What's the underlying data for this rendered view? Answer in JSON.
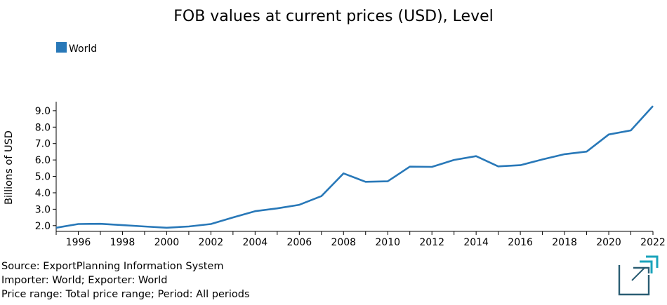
{
  "chart_data": {
    "type": "line",
    "title": "FOB values at current prices (USD), Level",
    "xlabel": "",
    "ylabel": "Billions of USD",
    "xlim": [
      1995,
      2022
    ],
    "ylim": [
      1.65,
      9.55
    ],
    "yticks": [
      2.0,
      3.0,
      4.0,
      5.0,
      6.0,
      7.0,
      8.0,
      9.0
    ],
    "ytick_labels": [
      "2.0",
      "3.0",
      "4.0",
      "5.0",
      "6.0",
      "7.0",
      "8.0",
      "9.0"
    ],
    "xticks": [
      1996,
      1998,
      2000,
      2002,
      2004,
      2006,
      2008,
      2010,
      2012,
      2014,
      2016,
      2018,
      2020,
      2022
    ],
    "xtick_labels": [
      "1996",
      "1998",
      "2000",
      "2002",
      "2004",
      "2006",
      "2008",
      "2010",
      "2012",
      "2014",
      "2016",
      "2018",
      "2020",
      "2022"
    ],
    "legend_position": "top-left",
    "grid": false,
    "x": [
      1995,
      1996,
      1997,
      1998,
      1999,
      2000,
      2001,
      2002,
      2003,
      2004,
      2005,
      2006,
      2007,
      2008,
      2009,
      2010,
      2011,
      2012,
      2013,
      2014,
      2015,
      2016,
      2017,
      2018,
      2019,
      2020,
      2021,
      2022
    ],
    "series": [
      {
        "name": "World",
        "color": "#2878b8",
        "values": [
          1.87,
          2.1,
          2.11,
          2.03,
          1.95,
          1.87,
          1.95,
          2.1,
          2.5,
          2.88,
          3.05,
          3.27,
          3.8,
          5.18,
          4.67,
          4.7,
          5.59,
          5.58,
          6.0,
          6.23,
          5.61,
          5.68,
          6.03,
          6.35,
          6.51,
          7.55,
          7.8,
          9.28
        ]
      }
    ]
  },
  "footer": {
    "source": "Source: ExportPlanning Information System",
    "importer_exporter": "Importer: World; Exporter: World",
    "price_period": "Price range: Total price range; Period: All periods"
  },
  "logo": {
    "name": "exportplanning-logo-icon",
    "colors": [
      "#2a5d73",
      "#1aa3bb"
    ]
  }
}
